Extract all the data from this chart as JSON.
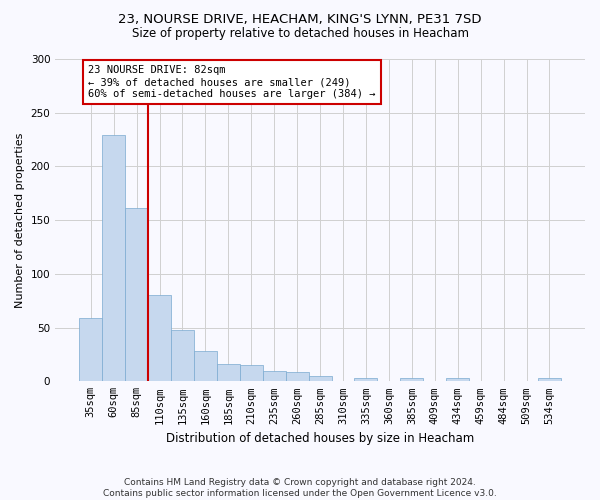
{
  "title1": "23, NOURSE DRIVE, HEACHAM, KING'S LYNN, PE31 7SD",
  "title2": "Size of property relative to detached houses in Heacham",
  "xlabel": "Distribution of detached houses by size in Heacham",
  "ylabel": "Number of detached properties",
  "categories": [
    "35sqm",
    "60sqm",
    "85sqm",
    "110sqm",
    "135sqm",
    "160sqm",
    "185sqm",
    "210sqm",
    "235sqm",
    "260sqm",
    "285sqm",
    "310sqm",
    "335sqm",
    "360sqm",
    "385sqm",
    "409sqm",
    "434sqm",
    "459sqm",
    "484sqm",
    "509sqm",
    "534sqm"
  ],
  "values": [
    59,
    229,
    161,
    80,
    48,
    28,
    16,
    15,
    10,
    9,
    5,
    0,
    3,
    0,
    3,
    0,
    3,
    0,
    0,
    0,
    3
  ],
  "bar_color": "#c6d8ee",
  "bar_edge_color": "#7aaad0",
  "vline_x_index": 2,
  "vline_color": "#cc0000",
  "annotation_text": "23 NOURSE DRIVE: 82sqm\n← 39% of detached houses are smaller (249)\n60% of semi-detached houses are larger (384) →",
  "annotation_box_color": "#ffffff",
  "annotation_box_edge": "#cc0000",
  "ylim": [
    0,
    300
  ],
  "yticks": [
    0,
    50,
    100,
    150,
    200,
    250,
    300
  ],
  "footer": "Contains HM Land Registry data © Crown copyright and database right 2024.\nContains public sector information licensed under the Open Government Licence v3.0.",
  "bg_color": "#f9f9ff",
  "grid_color": "#d0d0d0",
  "title1_fontsize": 9.5,
  "title2_fontsize": 8.5,
  "ylabel_fontsize": 8,
  "xlabel_fontsize": 8.5,
  "annot_fontsize": 7.5,
  "tick_fontsize": 7.5,
  "footer_fontsize": 6.5
}
